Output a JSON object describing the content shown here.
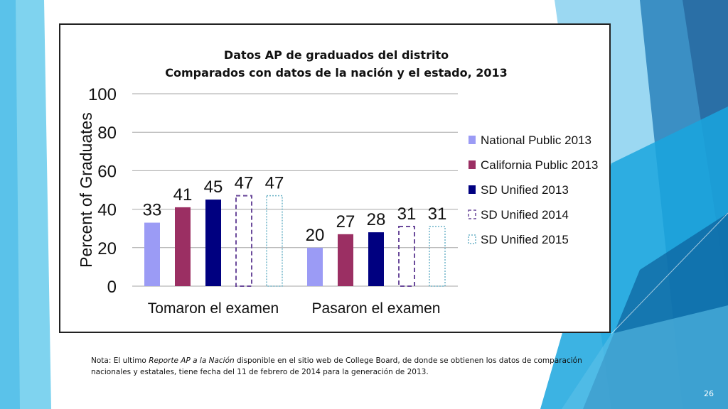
{
  "slide": {
    "page_number": "26"
  },
  "note": {
    "prefix": "Nota: El ultimo ",
    "italic": "Reporte AP a la Nación",
    "suffix": " disponible en el sitio web de College Board, de donde se obtienen los datos de comparación nacionales y estatales, tiene fecha del 11 de febrero de 2014 para la generación de 2013."
  },
  "chart_data": {
    "type": "bar",
    "title": "Datos AP de graduados del distrito",
    "subtitle": "Comparados con datos de la nación y el estado, 2013",
    "xlabel": "",
    "ylabel": "Percent of Graduates",
    "ylim": [
      0,
      100
    ],
    "yticks": [
      0,
      20,
      40,
      60,
      80,
      100
    ],
    "grid": true,
    "legend_position": "right",
    "categories": [
      "Tomaron el examen",
      "Pasaron el examen"
    ],
    "series": [
      {
        "name": "National Public 2013",
        "values": [
          33,
          20
        ],
        "color": "#9b9bf5",
        "style": "solid"
      },
      {
        "name": "California Public 2013",
        "values": [
          41,
          27
        ],
        "color": "#9b2f63",
        "style": "solid"
      },
      {
        "name": "SD Unified 2013",
        "values": [
          45,
          28
        ],
        "color": "#000080",
        "style": "solid"
      },
      {
        "name": "SD Unified 2014",
        "values": [
          47,
          31
        ],
        "color": "#6b4a9b",
        "style": "dashed"
      },
      {
        "name": "SD Unified 2015",
        "values": [
          47,
          31
        ],
        "color": "#6fb4c8",
        "style": "dotted"
      }
    ]
  }
}
